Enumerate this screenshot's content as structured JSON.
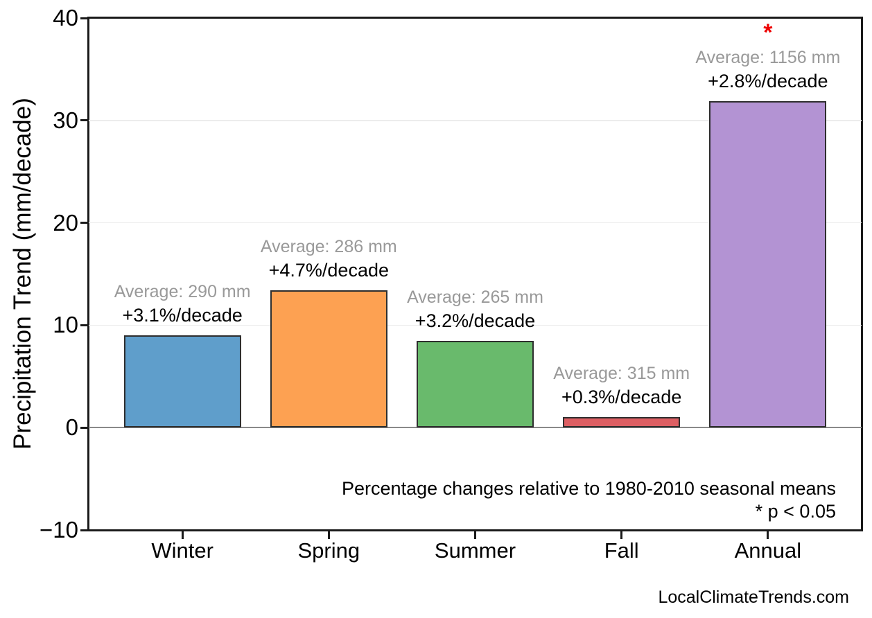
{
  "chart_data": {
    "type": "bar",
    "categories": [
      "Winter",
      "Spring",
      "Summer",
      "Fall",
      "Annual"
    ],
    "values": [
      9.0,
      13.4,
      8.5,
      1.0,
      31.9
    ],
    "bar_colors": [
      "#5F9ECB",
      "#FDA152",
      "#69BA6C",
      "#DD5F63",
      "#B393D3"
    ],
    "bar_edge_color": "#2E2E2E",
    "annotations": [
      {
        "average": "Average: 290 mm",
        "trend": "+3.1%/decade",
        "significant": false
      },
      {
        "average": "Average: 286 mm",
        "trend": "+4.7%/decade",
        "significant": false
      },
      {
        "average": "Average: 265 mm",
        "trend": "+3.2%/decade",
        "significant": false
      },
      {
        "average": "Average: 315 mm",
        "trend": "+0.3%/decade",
        "significant": false
      },
      {
        "average": "Average: 1156 mm",
        "trend": "+2.8%/decade",
        "significant": true
      }
    ],
    "significance_marker": "*",
    "significance_color": "#EE0000",
    "average_label_color": "#999999",
    "title": "",
    "xlabel": "",
    "ylabel": "Precipitation Trend (mm/decade)",
    "ylim": [
      -10,
      40
    ],
    "yticks": [
      -10,
      0,
      10,
      20,
      30,
      40
    ],
    "grid_values": [
      10,
      20,
      30
    ],
    "zero_line_value": 0,
    "legend": "none",
    "note_line1": "Percentage changes relative to 1980-2010 seasonal means",
    "note_line2": "* p < 0.05"
  },
  "footer": {
    "watermark": "LocalClimateTrends.com"
  }
}
